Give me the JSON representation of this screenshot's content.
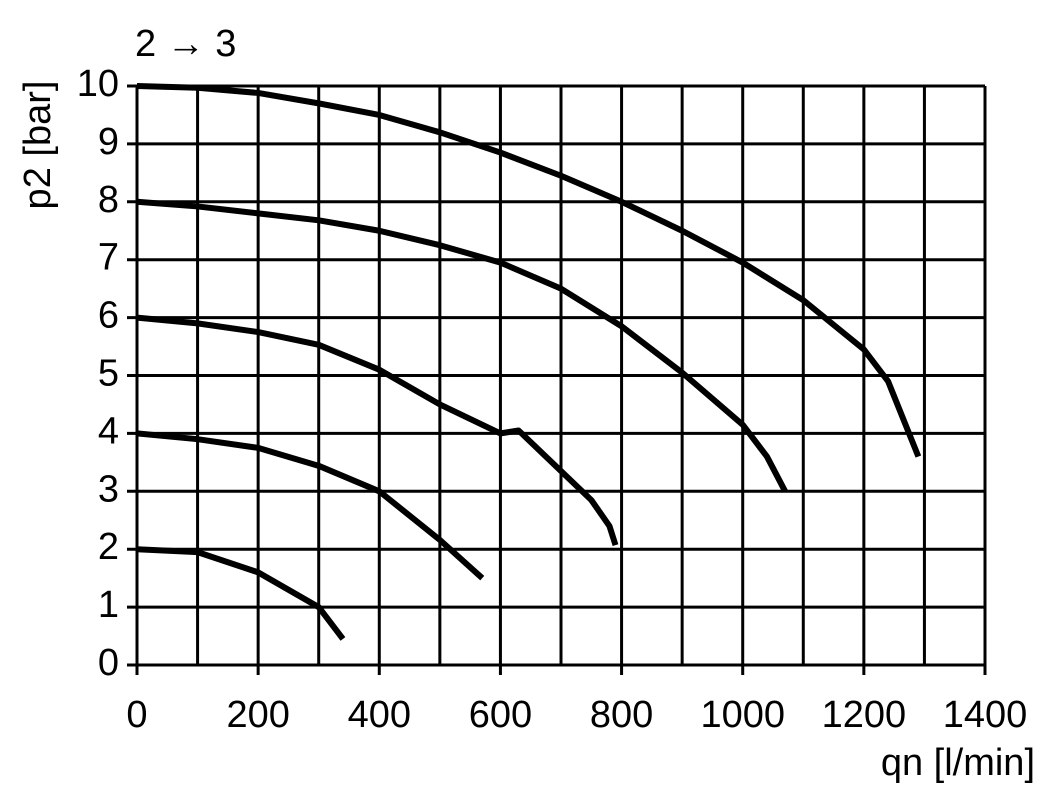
{
  "chart_data": {
    "type": "line",
    "title": "2 → 3",
    "ylabel": "p2 [bar]",
    "xlabel": "qn [l/min]",
    "xlim": [
      0,
      1400
    ],
    "ylim": [
      0,
      10
    ],
    "xticks": [
      0,
      200,
      400,
      600,
      800,
      1000,
      1200,
      1400
    ],
    "yticks": [
      0,
      1,
      2,
      3,
      4,
      5,
      6,
      7,
      8,
      9,
      10
    ],
    "grid": true,
    "series": [
      {
        "color": "#000000",
        "x": [
          0,
          100,
          200,
          300,
          340
        ],
        "values": [
          2,
          1.95,
          1.6,
          1.0,
          0.45
        ]
      },
      {
        "color": "#000000",
        "x": [
          0,
          100,
          200,
          300,
          400,
          500,
          570
        ],
        "values": [
          4,
          3.9,
          3.75,
          3.44,
          3.0,
          2.16,
          1.5
        ]
      },
      {
        "color": "#000000",
        "x": [
          0,
          100,
          200,
          300,
          400,
          500,
          600,
          630,
          700,
          750,
          780,
          790
        ],
        "values": [
          6,
          5.9,
          5.75,
          5.53,
          5.1,
          4.5,
          4.0,
          4.05,
          3.35,
          2.85,
          2.4,
          2.07
        ]
      },
      {
        "color": "#000000",
        "x": [
          0,
          100,
          200,
          300,
          400,
          500,
          600,
          700,
          800,
          900,
          1000,
          1040,
          1070
        ],
        "values": [
          8,
          7.92,
          7.8,
          7.68,
          7.5,
          7.25,
          6.95,
          6.5,
          5.85,
          5.05,
          4.15,
          3.6,
          3.0
        ]
      },
      {
        "color": "#000000",
        "x": [
          0,
          100,
          200,
          300,
          400,
          500,
          600,
          700,
          800,
          900,
          1000,
          1100,
          1200,
          1240,
          1290
        ],
        "values": [
          10,
          9.97,
          9.88,
          9.7,
          9.5,
          9.2,
          8.85,
          8.45,
          8.0,
          7.5,
          6.95,
          6.3,
          5.45,
          4.9,
          3.6
        ]
      }
    ]
  }
}
